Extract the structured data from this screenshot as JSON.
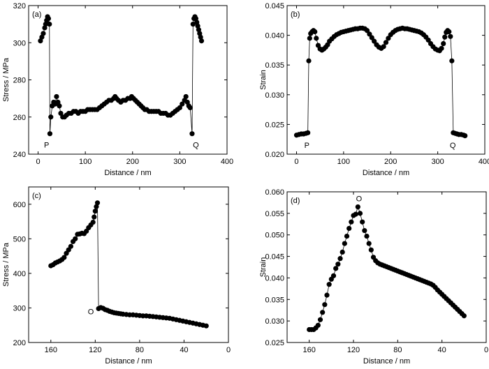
{
  "chart_data": [
    {
      "type": "scatter",
      "panel_label": "(a)",
      "xlabel": "Distance / nm",
      "ylabel": "Stress / MPa",
      "xlim": [
        -20,
        400
      ],
      "ylim": [
        240,
        320
      ],
      "x_reversed": false,
      "xticks": [
        0,
        100,
        200,
        300,
        400
      ],
      "yticks": [
        240,
        260,
        280,
        300,
        320
      ],
      "connect_points": true,
      "annotations": [
        {
          "text": "P",
          "x": 18,
          "y": 245
        },
        {
          "text": "Q",
          "x": 334,
          "y": 245
        }
      ],
      "points": [
        [
          5,
          301
        ],
        [
          8,
          303
        ],
        [
          11,
          305
        ],
        [
          14,
          308
        ],
        [
          16,
          310
        ],
        [
          18,
          312
        ],
        [
          20,
          314
        ],
        [
          22,
          313
        ],
        [
          24,
          310
        ],
        [
          25,
          251
        ],
        [
          27,
          260
        ],
        [
          30,
          266
        ],
        [
          33,
          268
        ],
        [
          36,
          267
        ],
        [
          39,
          271
        ],
        [
          42,
          268
        ],
        [
          45,
          266
        ],
        [
          48,
          262
        ],
        [
          52,
          260
        ],
        [
          56,
          260
        ],
        [
          60,
          261
        ],
        [
          65,
          262
        ],
        [
          70,
          262
        ],
        [
          75,
          263
        ],
        [
          80,
          263
        ],
        [
          85,
          262
        ],
        [
          90,
          263
        ],
        [
          95,
          263
        ],
        [
          100,
          263
        ],
        [
          105,
          264
        ],
        [
          110,
          264
        ],
        [
          115,
          264
        ],
        [
          120,
          264
        ],
        [
          125,
          264
        ],
        [
          130,
          265
        ],
        [
          135,
          266
        ],
        [
          140,
          267
        ],
        [
          145,
          268
        ],
        [
          150,
          269
        ],
        [
          155,
          269
        ],
        [
          160,
          270
        ],
        [
          163,
          271
        ],
        [
          166,
          270
        ],
        [
          170,
          269
        ],
        [
          175,
          268
        ],
        [
          180,
          269
        ],
        [
          185,
          269
        ],
        [
          190,
          270
        ],
        [
          195,
          270
        ],
        [
          198,
          271
        ],
        [
          202,
          270
        ],
        [
          206,
          269
        ],
        [
          210,
          268
        ],
        [
          214,
          267
        ],
        [
          218,
          266
        ],
        [
          222,
          265
        ],
        [
          226,
          264
        ],
        [
          230,
          264
        ],
        [
          235,
          263
        ],
        [
          240,
          263
        ],
        [
          245,
          263
        ],
        [
          250,
          263
        ],
        [
          255,
          263
        ],
        [
          260,
          262
        ],
        [
          265,
          262
        ],
        [
          270,
          262
        ],
        [
          275,
          261
        ],
        [
          280,
          261
        ],
        [
          285,
          262
        ],
        [
          290,
          263
        ],
        [
          295,
          264
        ],
        [
          300,
          265
        ],
        [
          305,
          267
        ],
        [
          310,
          269
        ],
        [
          313,
          271
        ],
        [
          316,
          268
        ],
        [
          319,
          266
        ],
        [
          322,
          265
        ],
        [
          326,
          251
        ],
        [
          328,
          310
        ],
        [
          330,
          313
        ],
        [
          332,
          314
        ],
        [
          334,
          313
        ],
        [
          336,
          311
        ],
        [
          338,
          309
        ],
        [
          340,
          307
        ],
        [
          342,
          305
        ],
        [
          344,
          303
        ],
        [
          346,
          301
        ]
      ]
    },
    {
      "type": "scatter",
      "panel_label": "(b)",
      "xlabel": "Distance / nm",
      "ylabel": "Strain",
      "xlim": [
        -20,
        400
      ],
      "ylim": [
        0.02,
        0.045
      ],
      "x_reversed": false,
      "xticks": [
        0,
        100,
        200,
        300,
        400
      ],
      "yticks": [
        0.02,
        0.025,
        0.03,
        0.035,
        0.04,
        0.045
      ],
      "ytick_labels": [
        "0.020",
        "0.025",
        "0.030",
        "0.035",
        "0.040",
        "0.045"
      ],
      "connect_points": true,
      "annotations": [
        {
          "text": "P",
          "x": 22,
          "y": 0.0215
        },
        {
          "text": "Q",
          "x": 332,
          "y": 0.0215
        }
      ],
      "points": [
        [
          0,
          0.0232
        ],
        [
          5,
          0.0233
        ],
        [
          10,
          0.0234
        ],
        [
          15,
          0.0234
        ],
        [
          20,
          0.0235
        ],
        [
          24,
          0.0236
        ],
        [
          26,
          0.0357
        ],
        [
          28,
          0.0395
        ],
        [
          30,
          0.0403
        ],
        [
          33,
          0.0406
        ],
        [
          36,
          0.0408
        ],
        [
          39,
          0.0406
        ],
        [
          42,
          0.0395
        ],
        [
          46,
          0.0383
        ],
        [
          50,
          0.0377
        ],
        [
          54,
          0.0375
        ],
        [
          58,
          0.0377
        ],
        [
          62,
          0.038
        ],
        [
          66,
          0.0384
        ],
        [
          70,
          0.039
        ],
        [
          75,
          0.0394
        ],
        [
          80,
          0.0398
        ],
        [
          85,
          0.0401
        ],
        [
          90,
          0.0403
        ],
        [
          95,
          0.0405
        ],
        [
          100,
          0.0406
        ],
        [
          105,
          0.0407
        ],
        [
          110,
          0.0408
        ],
        [
          115,
          0.0409
        ],
        [
          120,
          0.041
        ],
        [
          125,
          0.0411
        ],
        [
          130,
          0.0411
        ],
        [
          135,
          0.0412
        ],
        [
          140,
          0.0412
        ],
        [
          145,
          0.0411
        ],
        [
          150,
          0.0408
        ],
        [
          155,
          0.0402
        ],
        [
          160,
          0.0396
        ],
        [
          165,
          0.039
        ],
        [
          170,
          0.0384
        ],
        [
          175,
          0.038
        ],
        [
          180,
          0.0378
        ],
        [
          185,
          0.0381
        ],
        [
          190,
          0.0388
        ],
        [
          195,
          0.0395
        ],
        [
          200,
          0.0401
        ],
        [
          205,
          0.0405
        ],
        [
          210,
          0.0408
        ],
        [
          215,
          0.041
        ],
        [
          220,
          0.0411
        ],
        [
          225,
          0.0412
        ],
        [
          230,
          0.0411
        ],
        [
          235,
          0.0411
        ],
        [
          240,
          0.041
        ],
        [
          245,
          0.0409
        ],
        [
          250,
          0.0408
        ],
        [
          255,
          0.0407
        ],
        [
          260,
          0.0406
        ],
        [
          265,
          0.0404
        ],
        [
          270,
          0.0401
        ],
        [
          275,
          0.0397
        ],
        [
          280,
          0.0392
        ],
        [
          285,
          0.0386
        ],
        [
          290,
          0.0381
        ],
        [
          295,
          0.0377
        ],
        [
          300,
          0.0375
        ],
        [
          304,
          0.0374
        ],
        [
          308,
          0.0378
        ],
        [
          312,
          0.0386
        ],
        [
          315,
          0.0397
        ],
        [
          318,
          0.0405
        ],
        [
          321,
          0.0408
        ],
        [
          324,
          0.0406
        ],
        [
          327,
          0.0398
        ],
        [
          330,
          0.0357
        ],
        [
          333,
          0.0236
        ],
        [
          337,
          0.0235
        ],
        [
          341,
          0.0234
        ],
        [
          345,
          0.0233
        ],
        [
          350,
          0.0233
        ],
        [
          355,
          0.0232
        ],
        [
          358,
          0.0231
        ]
      ]
    },
    {
      "type": "scatter",
      "panel_label": "(c)",
      "xlabel": "Distance / nm",
      "ylabel": "Stress / MPa",
      "xlim": [
        180,
        0
      ],
      "ylim": [
        200,
        650
      ],
      "x_reversed": true,
      "xticks": [
        160,
        120,
        80,
        40,
        0
      ],
      "yticks": [
        200,
        300,
        400,
        500,
        600
      ],
      "connect_points": true,
      "annotations": [
        {
          "text": "O",
          "x": 124,
          "y": 290
        }
      ],
      "points": [
        [
          160,
          422
        ],
        [
          158,
          425
        ],
        [
          156,
          430
        ],
        [
          154,
          433
        ],
        [
          152,
          436
        ],
        [
          150,
          440
        ],
        [
          148,
          446
        ],
        [
          146,
          458
        ],
        [
          144,
          468
        ],
        [
          142,
          478
        ],
        [
          140,
          492
        ],
        [
          138,
          500
        ],
        [
          136,
          513
        ],
        [
          134,
          514
        ],
        [
          132,
          516
        ],
        [
          130,
          515
        ],
        [
          128,
          522
        ],
        [
          126,
          532
        ],
        [
          124,
          540
        ],
        [
          122,
          548
        ],
        [
          121,
          563
        ],
        [
          120,
          580
        ],
        [
          119,
          593
        ],
        [
          118,
          604
        ],
        [
          117,
          298
        ],
        [
          115,
          301
        ],
        [
          113,
          299
        ],
        [
          111,
          295
        ],
        [
          109,
          293
        ],
        [
          107,
          290
        ],
        [
          105,
          288
        ],
        [
          103,
          286
        ],
        [
          101,
          285
        ],
        [
          99,
          284
        ],
        [
          97,
          283
        ],
        [
          95,
          282
        ],
        [
          92,
          281
        ],
        [
          89,
          280
        ],
        [
          86,
          280
        ],
        [
          83,
          279
        ],
        [
          80,
          278
        ],
        [
          77,
          277
        ],
        [
          74,
          277
        ],
        [
          71,
          276
        ],
        [
          68,
          275
        ],
        [
          65,
          274
        ],
        [
          62,
          273
        ],
        [
          59,
          272
        ],
        [
          56,
          271
        ],
        [
          53,
          270
        ],
        [
          50,
          268
        ],
        [
          47,
          266
        ],
        [
          44,
          264
        ],
        [
          41,
          262
        ],
        [
          38,
          260
        ],
        [
          35,
          258
        ],
        [
          32,
          256
        ],
        [
          29,
          254
        ],
        [
          26,
          252
        ],
        [
          23,
          250
        ],
        [
          20,
          248
        ]
      ]
    },
    {
      "type": "scatter",
      "panel_label": "(d)",
      "xlabel": "Distance / nm",
      "ylabel": "Strain",
      "xlim": [
        180,
        0
      ],
      "ylim": [
        0.025,
        0.06
      ],
      "x_reversed": true,
      "xticks": [
        160,
        120,
        80,
        40,
        0
      ],
      "yticks": [
        0.025,
        0.03,
        0.035,
        0.04,
        0.045,
        0.05,
        0.055,
        0.06
      ],
      "ytick_labels": [
        "0.025",
        "0.030",
        "0.035",
        "0.040",
        "0.045",
        "0.050",
        "0.055",
        "0.060"
      ],
      "connect_points": true,
      "annotations": [
        {
          "text": "O",
          "x": 115,
          "y": 0.0585
        }
      ],
      "points": [
        [
          160,
          0.028
        ],
        [
          158,
          0.028
        ],
        [
          156,
          0.028
        ],
        [
          154,
          0.0284
        ],
        [
          152,
          0.029
        ],
        [
          150,
          0.0303
        ],
        [
          148,
          0.032
        ],
        [
          146,
          0.0338
        ],
        [
          144,
          0.036
        ],
        [
          142,
          0.0385
        ],
        [
          140,
          0.0397
        ],
        [
          138,
          0.0405
        ],
        [
          136,
          0.0422
        ],
        [
          134,
          0.0432
        ],
        [
          132,
          0.0445
        ],
        [
          130,
          0.046
        ],
        [
          128,
          0.048
        ],
        [
          126,
          0.0497
        ],
        [
          124,
          0.0515
        ],
        [
          122,
          0.053
        ],
        [
          120,
          0.0545
        ],
        [
          118,
          0.0548
        ],
        [
          116,
          0.0565
        ],
        [
          114,
          0.055
        ],
        [
          112,
          0.053
        ],
        [
          110,
          0.051
        ],
        [
          108,
          0.0497
        ],
        [
          106,
          0.048
        ],
        [
          104,
          0.0465
        ],
        [
          102,
          0.0448
        ],
        [
          100,
          0.044
        ],
        [
          98,
          0.0435
        ],
        [
          96,
          0.0432
        ],
        [
          94,
          0.043
        ],
        [
          92,
          0.0428
        ],
        [
          90,
          0.0426
        ],
        [
          88,
          0.0424
        ],
        [
          86,
          0.0422
        ],
        [
          84,
          0.042
        ],
        [
          82,
          0.0418
        ],
        [
          80,
          0.0416
        ],
        [
          78,
          0.0414
        ],
        [
          76,
          0.0412
        ],
        [
          74,
          0.041
        ],
        [
          72,
          0.0408
        ],
        [
          70,
          0.0406
        ],
        [
          68,
          0.0404
        ],
        [
          66,
          0.0402
        ],
        [
          64,
          0.04
        ],
        [
          62,
          0.0398
        ],
        [
          60,
          0.0396
        ],
        [
          58,
          0.0394
        ],
        [
          56,
          0.0392
        ],
        [
          54,
          0.039
        ],
        [
          52,
          0.0388
        ],
        [
          50,
          0.0386
        ],
        [
          48,
          0.0383
        ],
        [
          46,
          0.0378
        ],
        [
          44,
          0.0372
        ],
        [
          42,
          0.0367
        ],
        [
          40,
          0.0362
        ],
        [
          38,
          0.0357
        ],
        [
          36,
          0.0352
        ],
        [
          34,
          0.0347
        ],
        [
          32,
          0.0342
        ],
        [
          30,
          0.0337
        ],
        [
          28,
          0.0332
        ],
        [
          26,
          0.0327
        ],
        [
          24,
          0.0322
        ],
        [
          22,
          0.0317
        ],
        [
          20,
          0.0312
        ]
      ]
    }
  ]
}
